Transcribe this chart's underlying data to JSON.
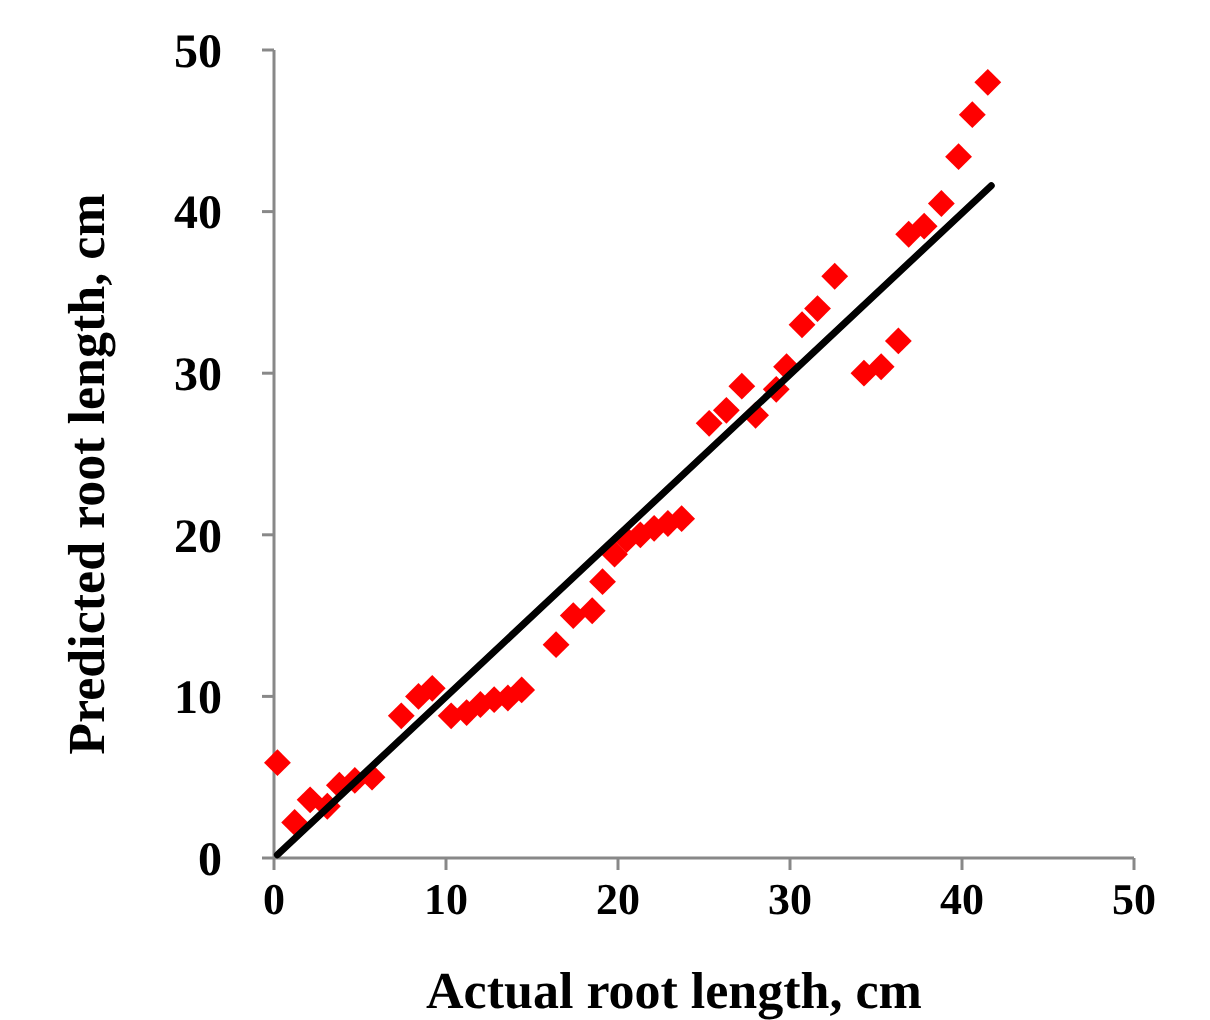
{
  "chart_data": {
    "type": "scatter",
    "xlabel": "Actual root length, cm",
    "ylabel": "Predicted root length, cm",
    "xlim": [
      0,
      50
    ],
    "ylim": [
      0,
      50
    ],
    "xticks": [
      0,
      10,
      20,
      30,
      40,
      50
    ],
    "yticks": [
      0,
      10,
      20,
      30,
      40,
      50
    ],
    "grid": false,
    "series": [
      {
        "color": "#ff0000",
        "marker": "diamond",
        "x": [
          0.2,
          1.2,
          2.1,
          3.1,
          3.8,
          4.7,
          5.7,
          7.4,
          8.4,
          9.2,
          10.3,
          11.2,
          12.0,
          12.8,
          13.6,
          14.4,
          16.4,
          17.4,
          18.5,
          19.1,
          19.8,
          20.5,
          21.3,
          22.1,
          22.9,
          23.7,
          25.3,
          26.3,
          27.2,
          28.0,
          29.2,
          29.8,
          30.7,
          31.6,
          32.6,
          34.3,
          35.3,
          36.3,
          36.9,
          37.8,
          38.8,
          39.8,
          40.6,
          41.5
        ],
        "values": [
          5.9,
          2.2,
          3.6,
          3.2,
          4.5,
          4.8,
          5.0,
          8.8,
          10.0,
          10.5,
          8.8,
          9.0,
          9.5,
          9.8,
          9.9,
          10.4,
          13.2,
          15.0,
          15.3,
          17.1,
          18.8,
          19.7,
          20.0,
          20.4,
          20.7,
          21.0,
          26.9,
          27.7,
          29.2,
          27.4,
          29.0,
          30.4,
          33.0,
          34.0,
          36.0,
          30.0,
          30.4,
          32.0,
          38.6,
          39.1,
          40.5,
          43.4,
          46.0,
          48.0
        ]
      },
      {
        "type": "line",
        "color": "#000000",
        "marker": "none",
        "line_style": "solid",
        "x": [
          0.2,
          41.7
        ],
        "values": [
          0.2,
          41.6
        ]
      }
    ]
  }
}
